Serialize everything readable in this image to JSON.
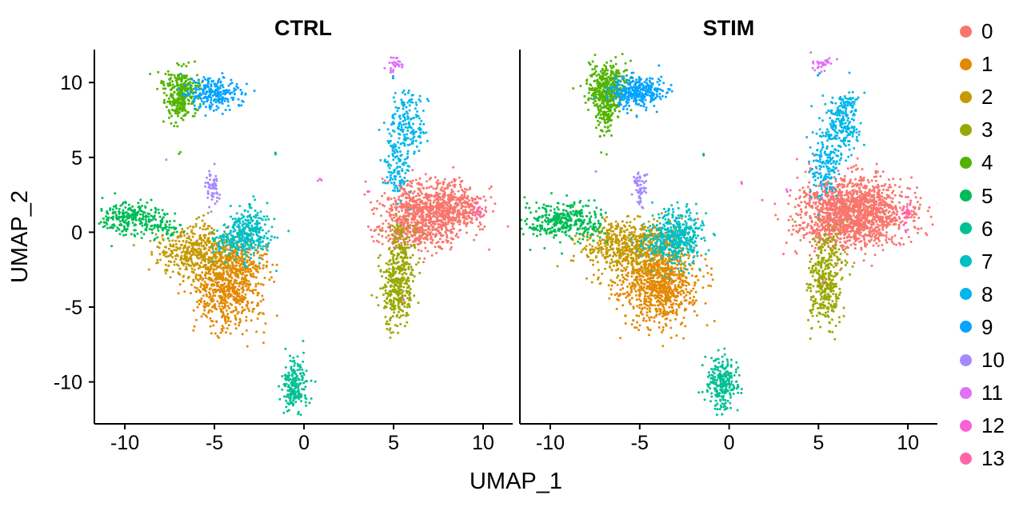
{
  "chart_data": {
    "type": "scatter",
    "title": "",
    "panels": [
      {
        "name": "CTRL"
      },
      {
        "name": "STIM"
      }
    ],
    "xlabel": "UMAP_1",
    "ylabel": "UMAP_2",
    "xlim": [
      -11.7,
      11.65
    ],
    "ylim": [
      -12.8,
      12.2
    ],
    "xticks": [
      -10,
      -5,
      0,
      5,
      10
    ],
    "yticks": [
      -10,
      -5,
      0,
      5,
      10
    ],
    "grid": false,
    "legend_position": "right",
    "point_radius": 1.5,
    "axis_color": "#000000",
    "clusters": [
      {
        "id": "0",
        "color": "#F8766D",
        "blobs": {
          "CTRL": [
            [
              6.8,
              1.3,
              1.35,
              1.05,
              850
            ],
            [
              6.2,
              -0.2,
              1.0,
              0.5,
              120
            ],
            [
              8.6,
              1.8,
              0.7,
              0.7,
              150
            ]
          ],
          "STIM": [
            [
              7.0,
              1.4,
              1.5,
              1.15,
              1400
            ],
            [
              6.0,
              0.1,
              1.1,
              0.6,
              160
            ]
          ]
        }
      },
      {
        "id": "1",
        "color": "#E38900",
        "blobs": {
          "CTRL": [
            [
              -4.3,
              -3.6,
              0.95,
              1.35,
              650
            ],
            [
              -3.5,
              -1.9,
              0.7,
              0.6,
              120
            ]
          ],
          "STIM": [
            [
              -4.0,
              -3.2,
              1.1,
              1.45,
              950
            ]
          ]
        }
      },
      {
        "id": "2",
        "color": "#C49A00",
        "blobs": {
          "CTRL": [
            [
              -6.0,
              -1.3,
              1.15,
              0.85,
              450
            ]
          ],
          "STIM": [
            [
              -5.7,
              -1.0,
              1.2,
              0.9,
              520
            ]
          ]
        }
      },
      {
        "id": "3",
        "color": "#99A800",
        "blobs": {
          "CTRL": [
            [
              5.2,
              -3.7,
              0.45,
              1.25,
              320
            ],
            [
              5.5,
              -0.9,
              0.5,
              0.9,
              110
            ]
          ],
          "STIM": [
            [
              5.3,
              -3.9,
              0.45,
              1.15,
              280
            ],
            [
              5.6,
              -1.2,
              0.5,
              0.9,
              90
            ]
          ]
        }
      },
      {
        "id": "4",
        "color": "#53B400",
        "blobs": {
          "CTRL": [
            [
              -6.9,
              9.4,
              0.5,
              0.75,
              280
            ],
            [
              -6.9,
              8.1,
              0.3,
              0.5,
              50
            ],
            [
              -6.9,
              5.2,
              0.08,
              0.1,
              2
            ]
          ],
          "STIM": [
            [
              -6.8,
              9.5,
              0.55,
              0.85,
              430
            ],
            [
              -6.9,
              7.9,
              0.25,
              0.7,
              70
            ],
            [
              -6.9,
              5.2,
              0.08,
              0.1,
              2
            ]
          ]
        }
      },
      {
        "id": "5",
        "color": "#00BC56",
        "blobs": {
          "CTRL": [
            [
              -9.6,
              0.9,
              0.95,
              0.55,
              260
            ],
            [
              -7.9,
              0.3,
              0.5,
              0.4,
              50
            ],
            [
              -1.6,
              5.3,
              0.08,
              0.08,
              2
            ]
          ],
          "STIM": [
            [
              -9.4,
              0.8,
              1.0,
              0.6,
              300
            ],
            [
              -7.8,
              0.2,
              0.5,
              0.4,
              50
            ],
            [
              -1.5,
              5.2,
              0.08,
              0.08,
              2
            ]
          ]
        }
      },
      {
        "id": "6",
        "color": "#00C094",
        "blobs": {
          "CTRL": [
            [
              -0.55,
              -10.1,
              0.35,
              0.85,
              210
            ]
          ],
          "STIM": [
            [
              -0.45,
              -10.0,
              0.4,
              0.9,
              260
            ]
          ]
        }
      },
      {
        "id": "7",
        "color": "#00BFC4",
        "blobs": {
          "CTRL": [
            [
              -3.1,
              -0.1,
              0.65,
              0.85,
              300
            ],
            [
              -4.3,
              -0.7,
              0.5,
              0.45,
              60
            ]
          ],
          "STIM": [
            [
              -2.9,
              -0.2,
              0.7,
              0.95,
              400
            ],
            [
              -4.1,
              -0.8,
              0.5,
              0.45,
              60
            ]
          ]
        }
      },
      {
        "id": "8",
        "color": "#00B6EB",
        "blobs": {
          "CTRL": [
            [
              5.7,
              6.9,
              0.55,
              0.9,
              140
            ],
            [
              5.2,
              4.4,
              0.35,
              1.0,
              110
            ],
            [
              5.9,
              8.6,
              0.4,
              0.4,
              30
            ]
          ],
          "STIM": [
            [
              6.3,
              7.2,
              0.55,
              1.0,
              200
            ],
            [
              5.4,
              4.5,
              0.4,
              1.1,
              160
            ],
            [
              6.7,
              8.8,
              0.35,
              0.35,
              40
            ]
          ]
        }
      },
      {
        "id": "9",
        "color": "#06A4FF",
        "blobs": {
          "CTRL": [
            [
              -5.0,
              9.3,
              0.8,
              0.55,
              240
            ],
            [
              4.9,
              10.4,
              0.08,
              0.08,
              2
            ]
          ],
          "STIM": [
            [
              -5.1,
              9.4,
              0.75,
              0.5,
              330
            ],
            [
              5.0,
              10.5,
              0.08,
              0.08,
              2
            ]
          ]
        }
      },
      {
        "id": "10",
        "color": "#A58AFF",
        "blobs": {
          "CTRL": [
            [
              -5.1,
              2.9,
              0.18,
              0.6,
              55
            ],
            [
              -7.6,
              4.8,
              0.08,
              0.08,
              1
            ]
          ],
          "STIM": [
            [
              -5.0,
              3.0,
              0.2,
              0.6,
              60
            ],
            [
              -7.4,
              4.1,
              0.08,
              0.08,
              1
            ]
          ]
        }
      },
      {
        "id": "11",
        "color": "#DF70F8",
        "blobs": {
          "CTRL": [
            [
              5.1,
              11.2,
              0.28,
              0.22,
              28
            ]
          ],
          "STIM": [
            [
              5.2,
              11.3,
              0.3,
              0.24,
              30
            ]
          ]
        }
      },
      {
        "id": "12",
        "color": "#FB61D7",
        "blobs": {
          "CTRL": [
            [
              0.95,
              3.5,
              0.18,
              0.1,
              3
            ],
            [
              3.4,
              2.8,
              0.12,
              0.1,
              2
            ]
          ],
          "STIM": [
            [
              0.6,
              3.4,
              0.15,
              0.1,
              2
            ],
            [
              3.3,
              2.8,
              0.12,
              0.1,
              3
            ]
          ]
        }
      },
      {
        "id": "13",
        "color": "#FF66A8",
        "blobs": {
          "CTRL": [
            [
              9.8,
              1.4,
              0.18,
              0.45,
              25
            ],
            [
              5.5,
              -4.4,
              0.1,
              0.1,
              2
            ]
          ],
          "STIM": [
            [
              9.95,
              1.3,
              0.15,
              0.5,
              30
            ],
            [
              5.3,
              -3.2,
              0.1,
              0.1,
              2
            ]
          ]
        }
      }
    ]
  }
}
